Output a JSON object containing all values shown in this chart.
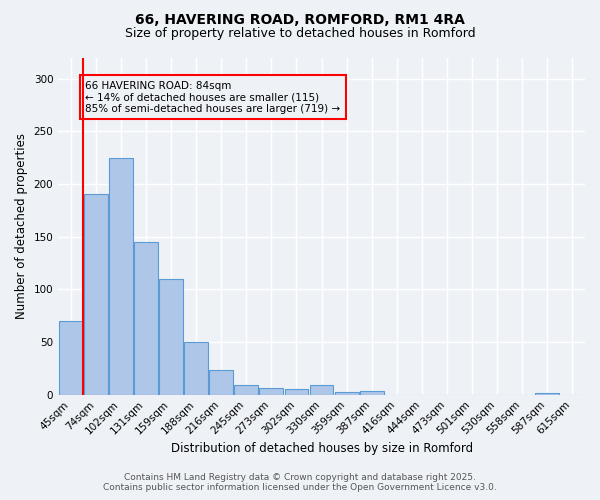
{
  "title1": "66, HAVERING ROAD, ROMFORD, RM1 4RA",
  "title2": "Size of property relative to detached houses in Romford",
  "xlabel": "Distribution of detached houses by size in Romford",
  "ylabel": "Number of detached properties",
  "bar_labels": [
    "45sqm",
    "74sqm",
    "102sqm",
    "131sqm",
    "159sqm",
    "188sqm",
    "216sqm",
    "245sqm",
    "273sqm",
    "302sqm",
    "330sqm",
    "359sqm",
    "387sqm",
    "416sqm",
    "444sqm",
    "473sqm",
    "501sqm",
    "530sqm",
    "558sqm",
    "587sqm",
    "615sqm"
  ],
  "bar_values": [
    70,
    190,
    225,
    145,
    110,
    50,
    23,
    9,
    6,
    5,
    9,
    3,
    4,
    0,
    0,
    0,
    0,
    0,
    0,
    2,
    0
  ],
  "bar_color": "#aec6e8",
  "bar_edge_color": "#5b9bd5",
  "ylim": [
    0,
    320
  ],
  "yticks": [
    0,
    50,
    100,
    150,
    200,
    250,
    300
  ],
  "red_line_x": 0.5,
  "annotation_text": "66 HAVERING ROAD: 84sqm\n← 14% of detached houses are smaller (115)\n85% of semi-detached houses are larger (719) →",
  "footer_text": "Contains HM Land Registry data © Crown copyright and database right 2025.\nContains public sector information licensed under the Open Government Licence v3.0.",
  "background_color": "#eef2f7",
  "grid_color": "#ffffff",
  "title_fontsize": 10,
  "subtitle_fontsize": 9,
  "axis_label_fontsize": 8.5,
  "tick_fontsize": 7.5,
  "annotation_fontsize": 7.5,
  "footer_fontsize": 6.5
}
